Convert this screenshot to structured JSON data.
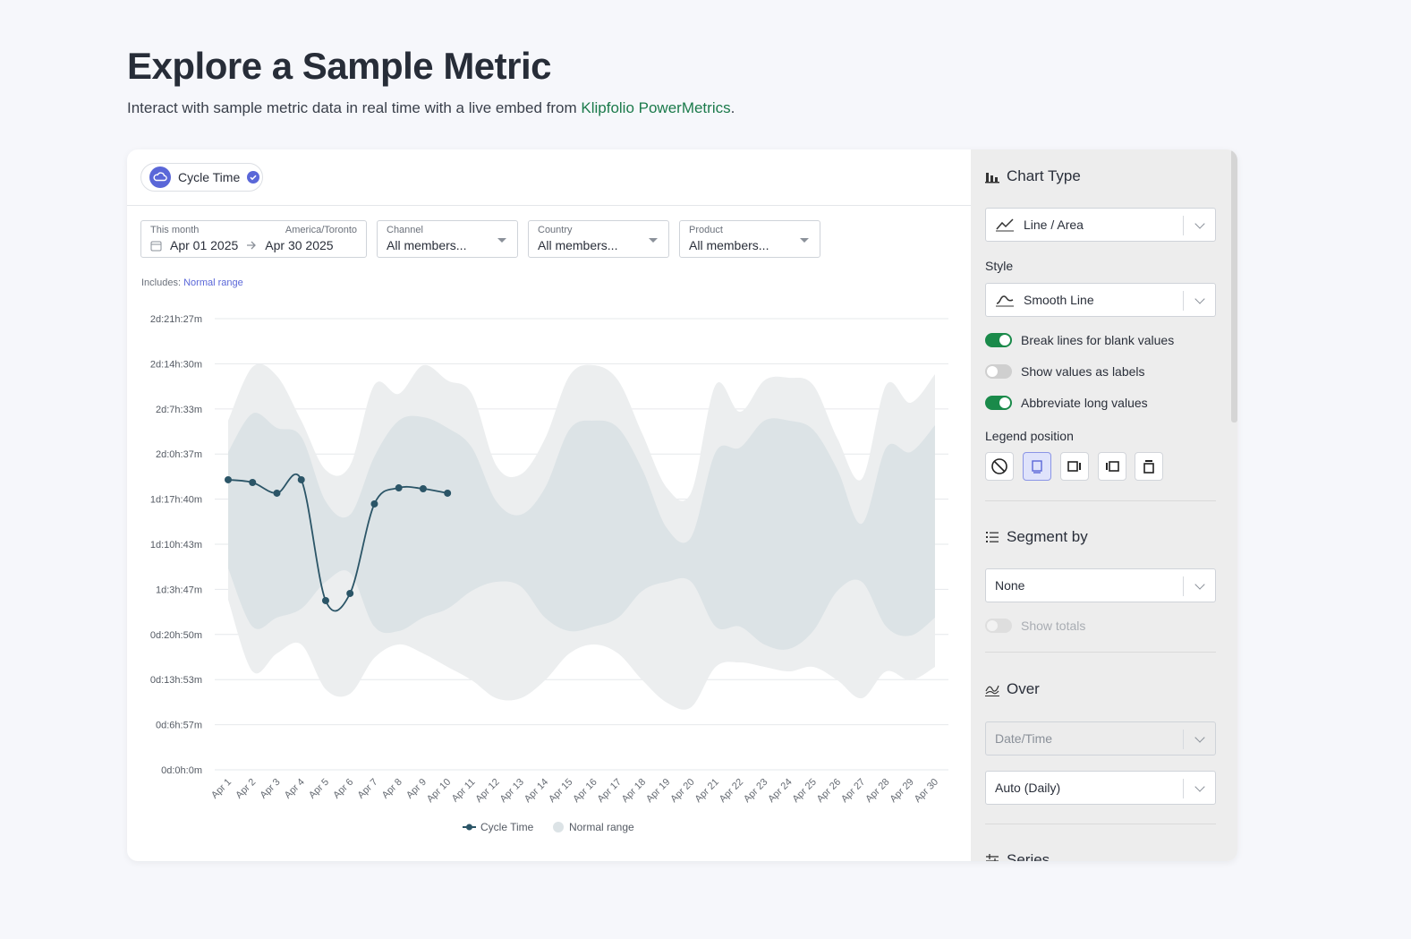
{
  "header": {
    "title": "Explore a Sample Metric",
    "subtitle": "Interact with sample metric data in real time with a live embed from",
    "link": "Klipfolio PowerMetrics",
    "subtitle_end": "."
  },
  "metric": {
    "name": "Cycle Time"
  },
  "filters": {
    "date": {
      "label": "This month",
      "timezone": "America/Toronto",
      "start": "Apr 01 2025",
      "end": "Apr 30 2025"
    },
    "dims": [
      {
        "label": "Channel",
        "value": "All members..."
      },
      {
        "label": "Country",
        "value": "All members..."
      },
      {
        "label": "Product",
        "value": "All members..."
      }
    ]
  },
  "includes": {
    "label": "Includes:",
    "item": "Normal range"
  },
  "chart_data": {
    "type": "line",
    "categories": [
      "Apr 1",
      "Apr 2",
      "Apr 3",
      "Apr 4",
      "Apr 5",
      "Apr 6",
      "Apr 7",
      "Apr 8",
      "Apr 9",
      "Apr 10",
      "Apr 11",
      "Apr 12",
      "Apr 13",
      "Apr 14",
      "Apr 15",
      "Apr 16",
      "Apr 17",
      "Apr 18",
      "Apr 19",
      "Apr 20",
      "Apr 21",
      "Apr 22",
      "Apr 23",
      "Apr 24",
      "Apr 25",
      "Apr 26",
      "Apr 27",
      "Apr 28",
      "Apr 29",
      "Apr 30"
    ],
    "series": [
      {
        "name": "Cycle Time",
        "color": "#2b5567",
        "values": [
          2679,
          2654,
          2555,
          2679,
          1563,
          1629,
          2456,
          2604,
          2596,
          2555,
          null,
          null,
          null,
          null,
          null,
          null,
          null,
          null,
          null,
          null,
          null,
          null,
          null,
          null,
          null,
          null,
          null,
          null,
          null,
          null
        ]
      }
    ],
    "range": {
      "name": "Normal range",
      "colors": [
        "#eceeef",
        "#dce3e6"
      ],
      "upper_outer": [
        3225,
        3721,
        3638,
        3225,
        2770,
        2811,
        3555,
        3473,
        3737,
        3597,
        3473,
        2811,
        2728,
        3059,
        3638,
        3737,
        3597,
        3100,
        2604,
        2563,
        3555,
        3307,
        3597,
        3621,
        3555,
        3059,
        2687,
        3555,
        3390,
        3654
      ],
      "upper_inner": [
        2935,
        3291,
        3158,
        3076,
        2480,
        2356,
        2894,
        3225,
        3258,
        3158,
        2976,
        2480,
        2356,
        2604,
        3142,
        3225,
        3158,
        2770,
        2232,
        2150,
        2935,
        2976,
        3225,
        3225,
        3142,
        2770,
        2274,
        2976,
        2935,
        3183
      ],
      "lower_inner": [
        1860,
        1323,
        1406,
        1488,
        1736,
        1819,
        1323,
        1282,
        1406,
        1488,
        1654,
        1736,
        1695,
        1406,
        1282,
        1323,
        1406,
        1654,
        1736,
        1736,
        1323,
        1323,
        1158,
        1116,
        1282,
        1654,
        1736,
        1323,
        1240,
        1406
      ],
      "lower_outer": [
        1571,
        909,
        1075,
        1158,
        744,
        703,
        1034,
        1158,
        1075,
        951,
        827,
        661,
        661,
        827,
        1075,
        1158,
        1075,
        827,
        620,
        579,
        951,
        992,
        951,
        909,
        951,
        827,
        661,
        909,
        827,
        951
      ]
    },
    "ylim": [
      0,
      4167
    ],
    "yticks": [
      {
        "value": 0,
        "label": "0d:0h:0m"
      },
      {
        "value": 417,
        "label": "0d:6h:57m"
      },
      {
        "value": 833,
        "label": "0d:13h:53m"
      },
      {
        "value": 1250,
        "label": "0d:20h:50m"
      },
      {
        "value": 1667,
        "label": "1d:3h:47m"
      },
      {
        "value": 2083,
        "label": "1d:10h:43m"
      },
      {
        "value": 2500,
        "label": "1d:17h:40m"
      },
      {
        "value": 2917,
        "label": "2d:0h:37m"
      },
      {
        "value": 3333,
        "label": "2d:7h:33m"
      },
      {
        "value": 3750,
        "label": "2d:14h:30m"
      },
      {
        "value": 4167,
        "label": "2d:21h:27m"
      }
    ],
    "grid": true,
    "legend": "bottom"
  },
  "panel": {
    "chart_type": {
      "heading": "Chart Type",
      "value": "Line / Area"
    },
    "style": {
      "label": "Style",
      "value": "Smooth Line"
    },
    "toggles": [
      {
        "label": "Break lines for blank values",
        "on": true
      },
      {
        "label": "Show values as labels",
        "on": false
      },
      {
        "label": "Abbreviate long values",
        "on": true
      }
    ],
    "legend_position": {
      "label": "Legend position",
      "selected": 1
    },
    "segment": {
      "heading": "Segment by",
      "value": "None",
      "totals": {
        "label": "Show totals",
        "on": false,
        "disabled": true
      }
    },
    "over": {
      "heading": "Over",
      "field": "Date/Time",
      "interval": "Auto (Daily)"
    },
    "series": {
      "heading": "Series"
    }
  }
}
